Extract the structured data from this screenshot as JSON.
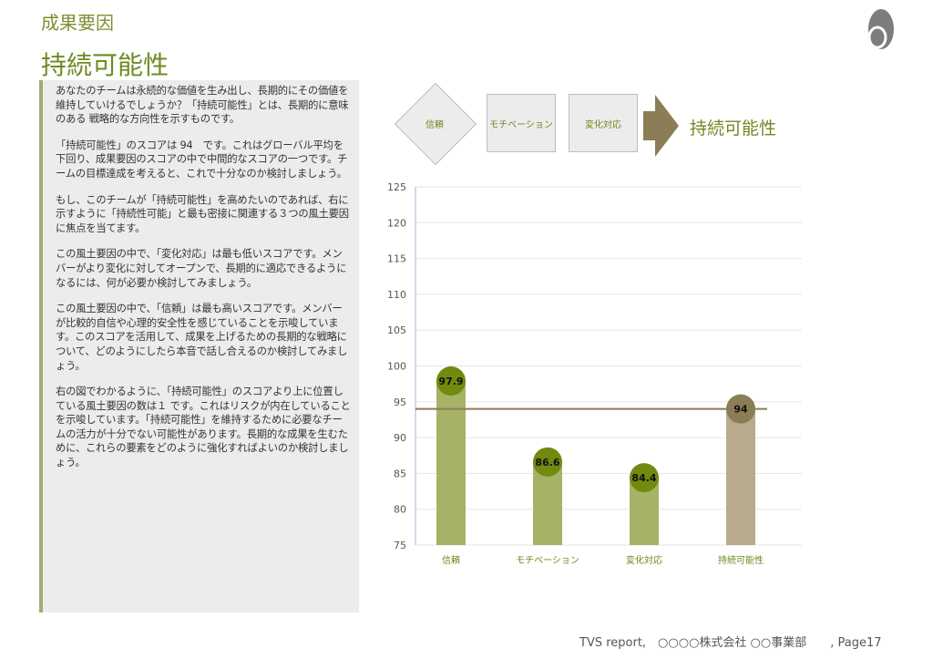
{
  "header": {
    "section": "成果要因",
    "title": "持続可能性"
  },
  "panel": {
    "paragraphs": [
      "あなたのチームは永続的な価値を生み出し、長期的にその価値を維持していけるでしょうか？「持続可能性」とは、長期的に意味のある 戦略的な方向性を示すものです。",
      "「持続可能性」のスコアは 94　です。これはグローバル平均を下回り、成果要因のスコアの中で中間的なスコアの一つです。チームの目標達成を考えると、これで十分なのか検討しましょう。",
      "もし、このチームが「持続可能性」を高めたいのであれば、右に示すように「持続性可能」と最も密接に関連する３つの風土要因に焦点を当てます。",
      "この風土要因の中で、「変化対応」は最も低いスコアです。メンバーがより変化に対してオープンで、長期的に適応できるようになるには、何が必要か検討してみましょう。",
      "この風土要因の中で、「信頼」は最も高いスコアです。メンバーが比較的自信や心理的安全性を感じていることを示唆しています。このスコアを活用して、成果を上げるための長期的な戦略について、どのようにしたら本音で話し合えるのか検討してみましょう。",
      "右の図でわかるように、「持続可能性」のスコアより上に位置している風土要因の数は１ です。これはリスクが内在していることを示唆しています。「持続可能性」を維持するために必要なチームの活力が十分でない可能性があります。長期的な成果を生むために、これらの要素をどのように強化すればよいのか検討しましょう。"
    ]
  },
  "diagram": {
    "factors": [
      "信頼",
      "モチベーション",
      "変化対応"
    ],
    "target": "持続可能性"
  },
  "colors": {
    "olive": "#6f8a22",
    "bar_green": "#a6b366",
    "bubble_green": "#718a0f",
    "bar_target": "#b8ab8d",
    "bubble_target": "#8b7d55",
    "ref_line": "#8b7d55"
  },
  "chart_data": {
    "type": "bar",
    "categories": [
      "信頼",
      "モチベーション",
      "変化対応",
      "持続可能性"
    ],
    "values": [
      97.9,
      86.6,
      84.4,
      94
    ],
    "labels": [
      "97.9",
      "86.6",
      "84.4",
      "94"
    ],
    "reference_line": 94,
    "ylim": [
      75,
      125
    ],
    "yticks": [
      "75",
      "80",
      "85",
      "90",
      "95",
      "100",
      "105",
      "110",
      "115",
      "120",
      "125"
    ],
    "grid": true,
    "title": "",
    "xlabel": "",
    "ylabel": ""
  },
  "footer": {
    "text": "TVS report,　○○○○株式会社 ○○事業部　　, Page17"
  }
}
